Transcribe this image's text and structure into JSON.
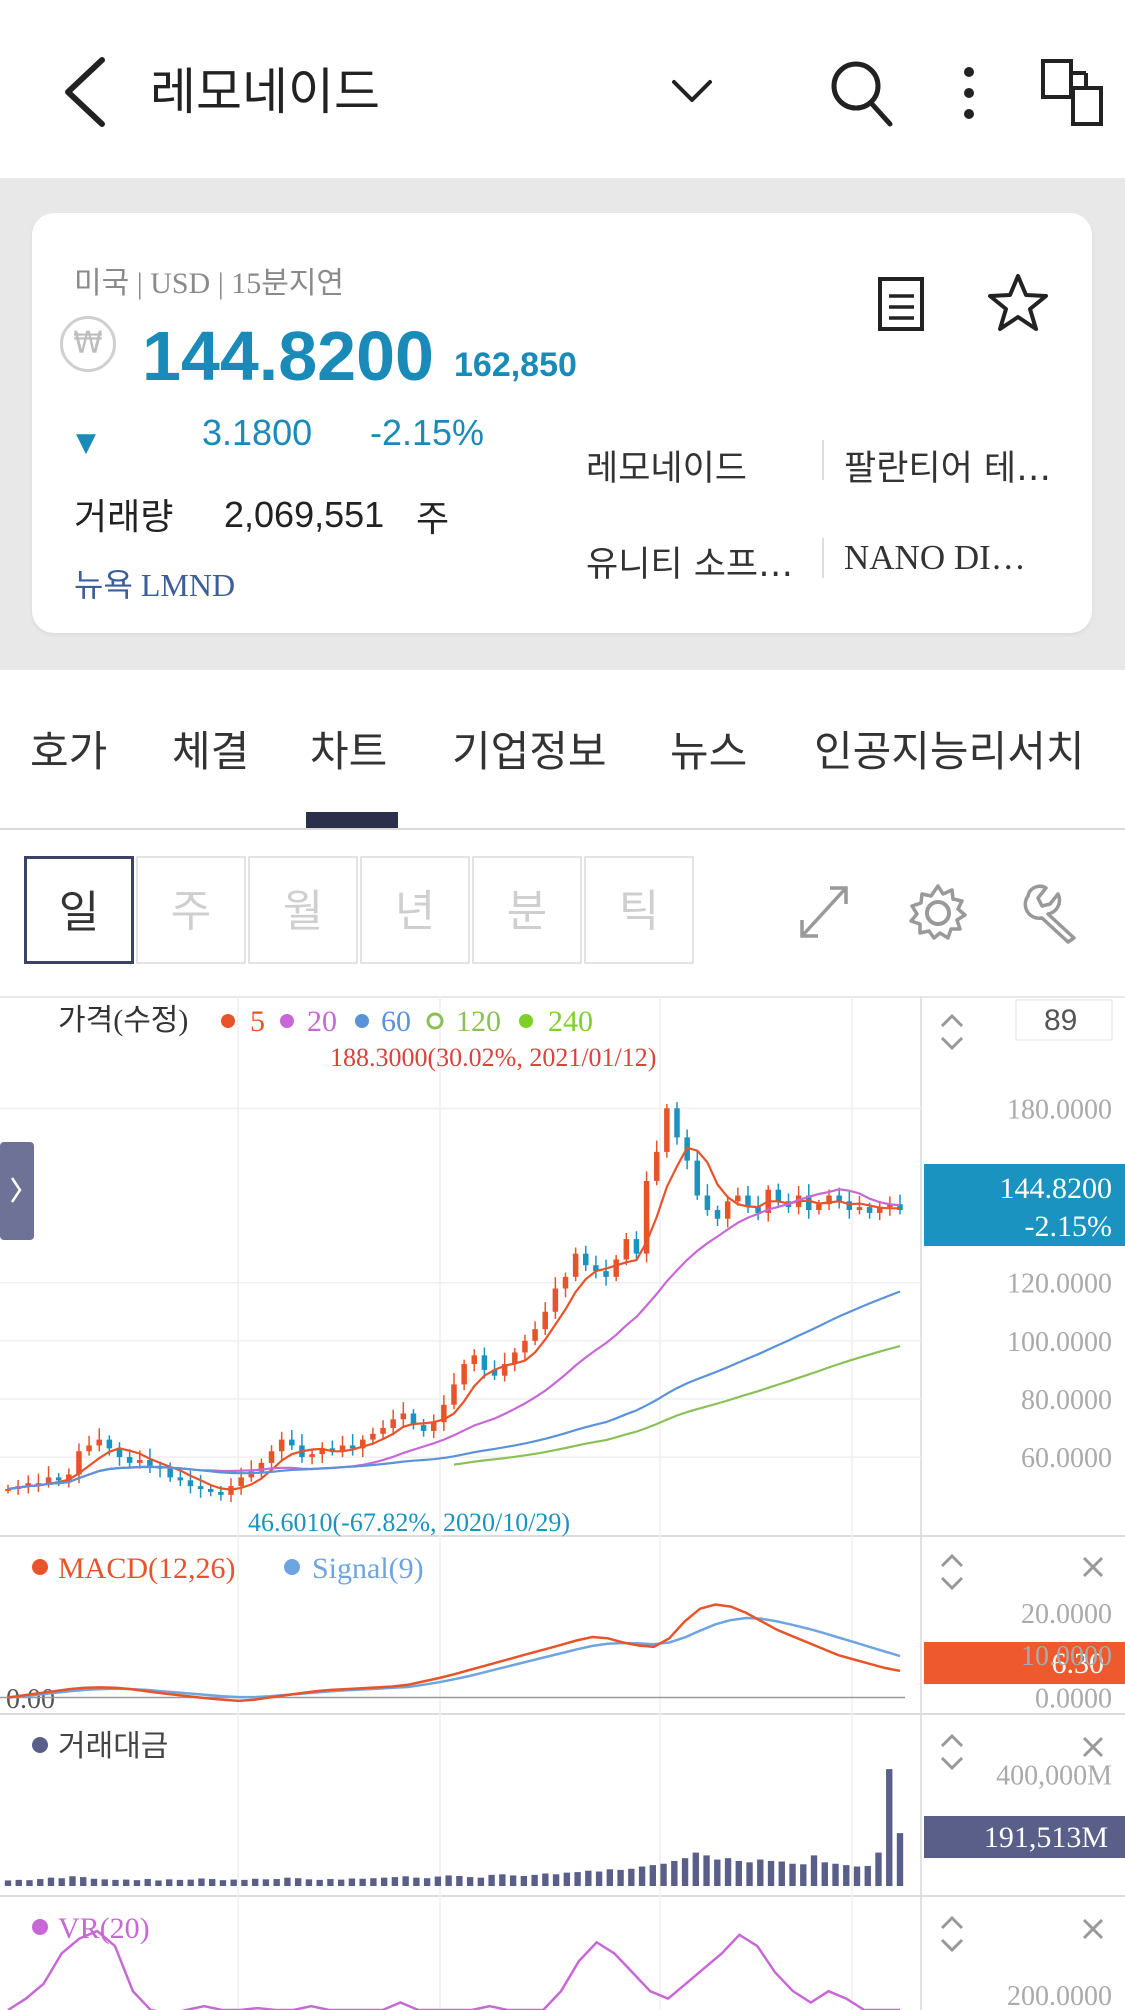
{
  "header": {
    "title": "레모네이드"
  },
  "quote": {
    "meta": "미국 | USD | 15분지연",
    "currency_symbol": "₩",
    "price": "144.8200",
    "price_krw": "162,850",
    "direction_symbol": "▼",
    "change": "3.1800",
    "change_pct": "-2.15%",
    "volume_label": "거래량",
    "volume_value": "2,069,551",
    "volume_unit": "주",
    "exchange": "뉴욕 LMND",
    "related": [
      "레모네이드",
      "팔란티어 테…",
      "유니티 소프…",
      "NANO DI…"
    ]
  },
  "tabs": [
    "호가",
    "체결",
    "차트",
    "기업정보",
    "뉴스",
    "인공지능리서치"
  ],
  "active_tab": "차트",
  "periods": [
    "일",
    "주",
    "월",
    "년",
    "분",
    "틱"
  ],
  "active_period": "일",
  "chart_count": "89",
  "colors": {
    "up": "#e8542a",
    "down": "#1a93c0",
    "ma5": "#e8542a",
    "ma20": "#c768d6",
    "ma60": "#5a93d8",
    "ma120": "#8bbf57",
    "ma240": "#7fcf2a",
    "signal": "#6ea4e0",
    "volume": "#5a5f8a",
    "vr": "#c768d6"
  },
  "chart_data": {
    "type": "line",
    "price_panel": {
      "legend_title": "가격(수정)",
      "legend": [
        {
          "label": "5",
          "color": "#e8542a"
        },
        {
          "label": "20",
          "color": "#c768d6"
        },
        {
          "label": "60",
          "color": "#5a93d8"
        },
        {
          "label": "120",
          "color": "#8bbf57"
        },
        {
          "label": "240",
          "color": "#7fcf2a"
        }
      ],
      "high_annotation": "188.3000(30.02%, 2021/01/12)",
      "low_annotation": "46.6010(-67.82%, 2020/10/29)",
      "y_ticks": [
        "180.0000",
        "120.0000",
        "100.0000",
        "80.0000",
        "60.0000"
      ],
      "y_tick_values": [
        180,
        120,
        100,
        80,
        60
      ],
      "ylim": [
        38,
        198
      ],
      "current_price_label": "144.8200",
      "current_pct_label": "-2.15%",
      "close_values": [
        49,
        50,
        51,
        51,
        53,
        52,
        54,
        62,
        64,
        66,
        63,
        60,
        58,
        59,
        57,
        56,
        53,
        52,
        50,
        49,
        48,
        47,
        50,
        53,
        55,
        58,
        62,
        66,
        64,
        60,
        61,
        63,
        62,
        64,
        63,
        66,
        68,
        70,
        73,
        75,
        71,
        69,
        72,
        78,
        85,
        92,
        95,
        90,
        88,
        92,
        96,
        100,
        104,
        110,
        118,
        122,
        130,
        126,
        124,
        122,
        128,
        135,
        130,
        155,
        165,
        180,
        170,
        162,
        150,
        145,
        142,
        148,
        150,
        146,
        144,
        152,
        148,
        146,
        150,
        145,
        147,
        150,
        148,
        145,
        146,
        144,
        146,
        147,
        145
      ]
    },
    "macd_panel": {
      "legend": [
        {
          "label": "MACD(12,26)",
          "color": "#e8542a"
        },
        {
          "label": "Signal(9)",
          "color": "#6ea4e0"
        }
      ],
      "zero_label": "0.00",
      "y_ticks": [
        "20.0000",
        "10.0000",
        "0.0000"
      ],
      "y_tick_values": [
        20,
        10,
        0
      ],
      "ylim": [
        -2,
        24
      ],
      "current_value_label": "6.30",
      "macd_values": [
        0,
        0.5,
        1,
        1.5,
        2,
        2.3,
        2.4,
        2.3,
        2,
        1.5,
        1,
        0.6,
        0.2,
        -0.2,
        -0.5,
        -0.8,
        -0.5,
        0,
        0.5,
        1,
        1.5,
        1.8,
        2,
        2.2,
        2.4,
        2.6,
        3,
        3.8,
        4.6,
        5.5,
        6.5,
        7.5,
        8.5,
        9.5,
        10.5,
        11.5,
        12.5,
        13.5,
        14.3,
        14,
        13,
        12.3,
        12,
        14,
        18,
        21,
        22,
        21.5,
        20,
        18,
        16,
        14.5,
        13,
        11.5,
        10,
        9,
        8,
        7,
        6.3
      ],
      "signal_values": [
        0,
        0.3,
        0.7,
        1.1,
        1.5,
        1.8,
        2,
        2.1,
        2,
        1.8,
        1.5,
        1.2,
        0.9,
        0.6,
        0.3,
        0.1,
        0.1,
        0.3,
        0.6,
        0.9,
        1.2,
        1.5,
        1.7,
        1.9,
        2.1,
        2.3,
        2.5,
        3,
        3.6,
        4.3,
        5.1,
        6,
        6.9,
        7.8,
        8.7,
        9.6,
        10.5,
        11.4,
        12.2,
        12.7,
        12.9,
        12.8,
        12.6,
        13,
        14.2,
        15.8,
        17.3,
        18.3,
        18.8,
        18.6,
        18,
        17.2,
        16.3,
        15.3,
        14.2,
        13.1,
        12,
        10.9,
        9.8
      ]
    },
    "value_panel": {
      "legend": [
        {
          "label": "거래대금",
          "color": "#5a5f8a"
        }
      ],
      "y_ticks": [
        "400,000M"
      ],
      "y_tick_values": [
        400000
      ],
      "ylim": [
        0,
        460000
      ],
      "current_value_label": "191,513M",
      "values_m": [
        20000,
        22000,
        21000,
        25000,
        30000,
        28000,
        35000,
        32000,
        26000,
        24000,
        22000,
        23000,
        21000,
        25000,
        20000,
        24000,
        22000,
        23000,
        27000,
        25000,
        21000,
        23000,
        22000,
        26000,
        24000,
        25000,
        30000,
        28000,
        24000,
        22000,
        25000,
        23000,
        27000,
        26000,
        28000,
        30000,
        32000,
        35000,
        30000,
        28000,
        34000,
        38000,
        36000,
        32000,
        30000,
        40000,
        42000,
        38000,
        36000,
        40000,
        45000,
        42000,
        48000,
        50000,
        55000,
        52000,
        60000,
        58000,
        62000,
        70000,
        75000,
        80000,
        90000,
        100000,
        120000,
        110000,
        95000,
        100000,
        90000,
        85000,
        95000,
        90000,
        88000,
        80000,
        78000,
        110000,
        85000,
        80000,
        75000,
        70000,
        72000,
        120000,
        420000,
        190000
      ]
    },
    "vr_panel": {
      "legend": [
        {
          "label": "VR(20)",
          "color": "#c768d6"
        }
      ],
      "y_ticks": [
        "200.0000"
      ],
      "y_tick_values": [
        200
      ],
      "ylim": [
        150,
        400
      ],
      "values": [
        150,
        180,
        220,
        300,
        340,
        360,
        320,
        200,
        150,
        140,
        150,
        160,
        150,
        150,
        155,
        150,
        150,
        160,
        150,
        150,
        150,
        150,
        170,
        150,
        150,
        150,
        150,
        160,
        150,
        150,
        150,
        200,
        280,
        330,
        300,
        250,
        200,
        180,
        220,
        260,
        300,
        350,
        320,
        250,
        200,
        170,
        200,
        180,
        150,
        150,
        150
      ]
    }
  }
}
